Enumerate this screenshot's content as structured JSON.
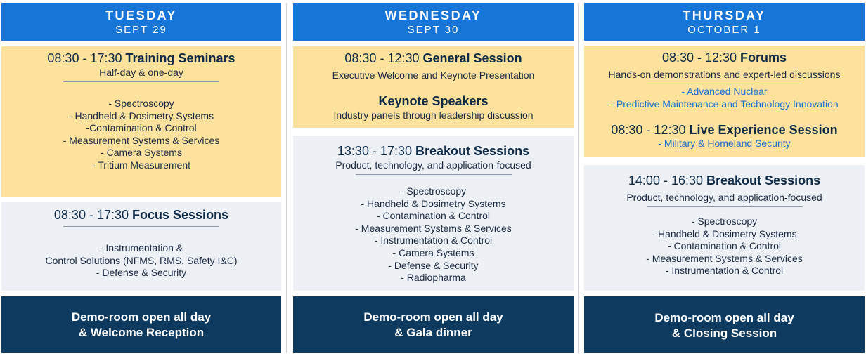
{
  "tuesday": {
    "day": "TUESDAY",
    "date": "SEPT 29",
    "training": {
      "time": "08:30 - 17:30",
      "title": "Training Seminars",
      "subtitle": "Half-day & one-day",
      "items": [
        "- Spectroscopy",
        "- Handheld & Dosimetry Systems",
        "-Contamination & Control",
        "- Measurement Systems & Services",
        "- Camera Systems",
        "- Tritium Measurement"
      ]
    },
    "focus": {
      "time": "08:30 - 17:30",
      "title": "Focus Sessions",
      "items": [
        "- Instrumentation &",
        "Control Solutions (NFMS, RMS, Safety I&C)",
        "- Defense & Security"
      ]
    },
    "footer": [
      "Demo-room open all day",
      "& Welcome Reception"
    ]
  },
  "wednesday": {
    "day": "WEDNESDAY",
    "date": "SEPT 30",
    "general": {
      "time": "08:30 - 12:30",
      "title": "General Session",
      "subtitle": "Executive Welcome and Keynote Presentation"
    },
    "keynote": {
      "title": "Keynote Speakers",
      "subtitle": "Industry panels through leadership discussion"
    },
    "breakout": {
      "time": "13:30 - 17:30",
      "title": "Breakout Sessions",
      "subtitle": "Product, technology, and application-focused",
      "items": [
        "- Spectroscopy",
        "- Handheld & Dosimetry Systems",
        "- Contamination & Control",
        "- Measurement Systems & Services",
        "- Instrumentation & Control",
        "- Camera Systems",
        "- Defense & Security",
        "- Radiopharma"
      ]
    },
    "footer": [
      "Demo-room open all day",
      "& Gala dinner"
    ]
  },
  "thursday": {
    "day": "THURSDAY",
    "date": "OCTOBER 1",
    "forums": {
      "time": "08:30 - 12:30",
      "title": "Forums",
      "subtitle": "Hands-on demonstrations and expert-led discussions",
      "items": [
        "- Advanced Nuclear",
        "- Predictive Maintenance and Technology Innovation"
      ]
    },
    "live": {
      "time": "08:30 - 12:30",
      "title": "Live Experience Session",
      "items": [
        "- Military & Homeland Security"
      ]
    },
    "breakout": {
      "time": "14:00 - 16:30",
      "title": "Breakout Sessions",
      "subtitle": "Product, technology, and application-focused",
      "items": [
        "- Spectroscopy",
        "- Handheld & Dosimetry Systems",
        "- Contamination & Control",
        "- Measurement Systems & Services",
        "- Instrumentation & Control"
      ]
    },
    "footer": [
      "Demo-room open all day",
      "& Closing Session"
    ]
  },
  "colors": {
    "header_blue": "#1675d6",
    "session_yellow": "#fce29d",
    "session_grey": "#edf0f4",
    "footer_navy": "#0f3a60",
    "link_blue": "#1c6fd0"
  }
}
